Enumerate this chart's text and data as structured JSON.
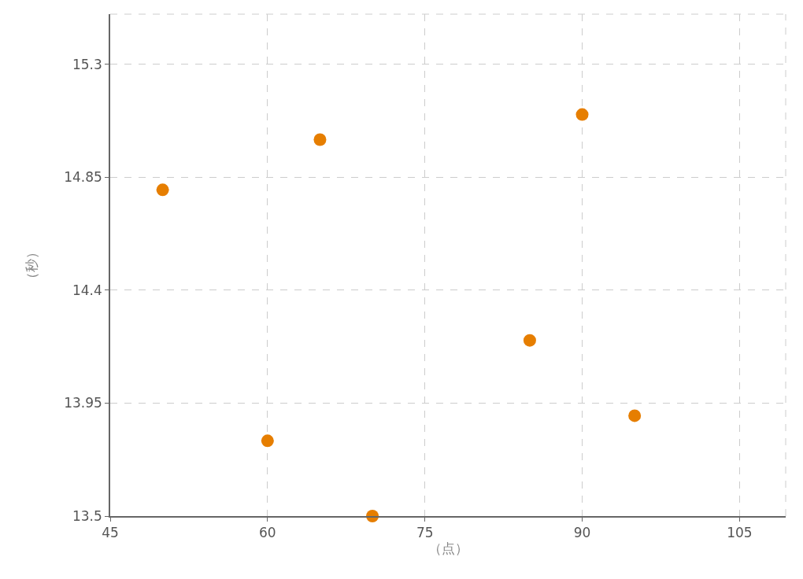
{
  "chart_data": {
    "type": "scatter",
    "xlabel": "（点）",
    "ylabel": "（秒）",
    "x": [
      50,
      60,
      65,
      70,
      85,
      90,
      95
    ],
    "series": [
      {
        "color": "#e67e00",
        "values": [
          14.8,
          13.8,
          15.0,
          13.5,
          14.2,
          15.1,
          13.9
        ]
      }
    ],
    "xlim": [
      45,
      109.4
    ],
    "xticks": [
      45,
      60,
      75,
      90,
      105
    ],
    "ylim": [
      13.5,
      15.5
    ],
    "yticks": [
      13.5,
      13.95,
      14.4,
      14.85,
      15.3
    ],
    "grid": true,
    "marker": "circle",
    "legend": false
  }
}
